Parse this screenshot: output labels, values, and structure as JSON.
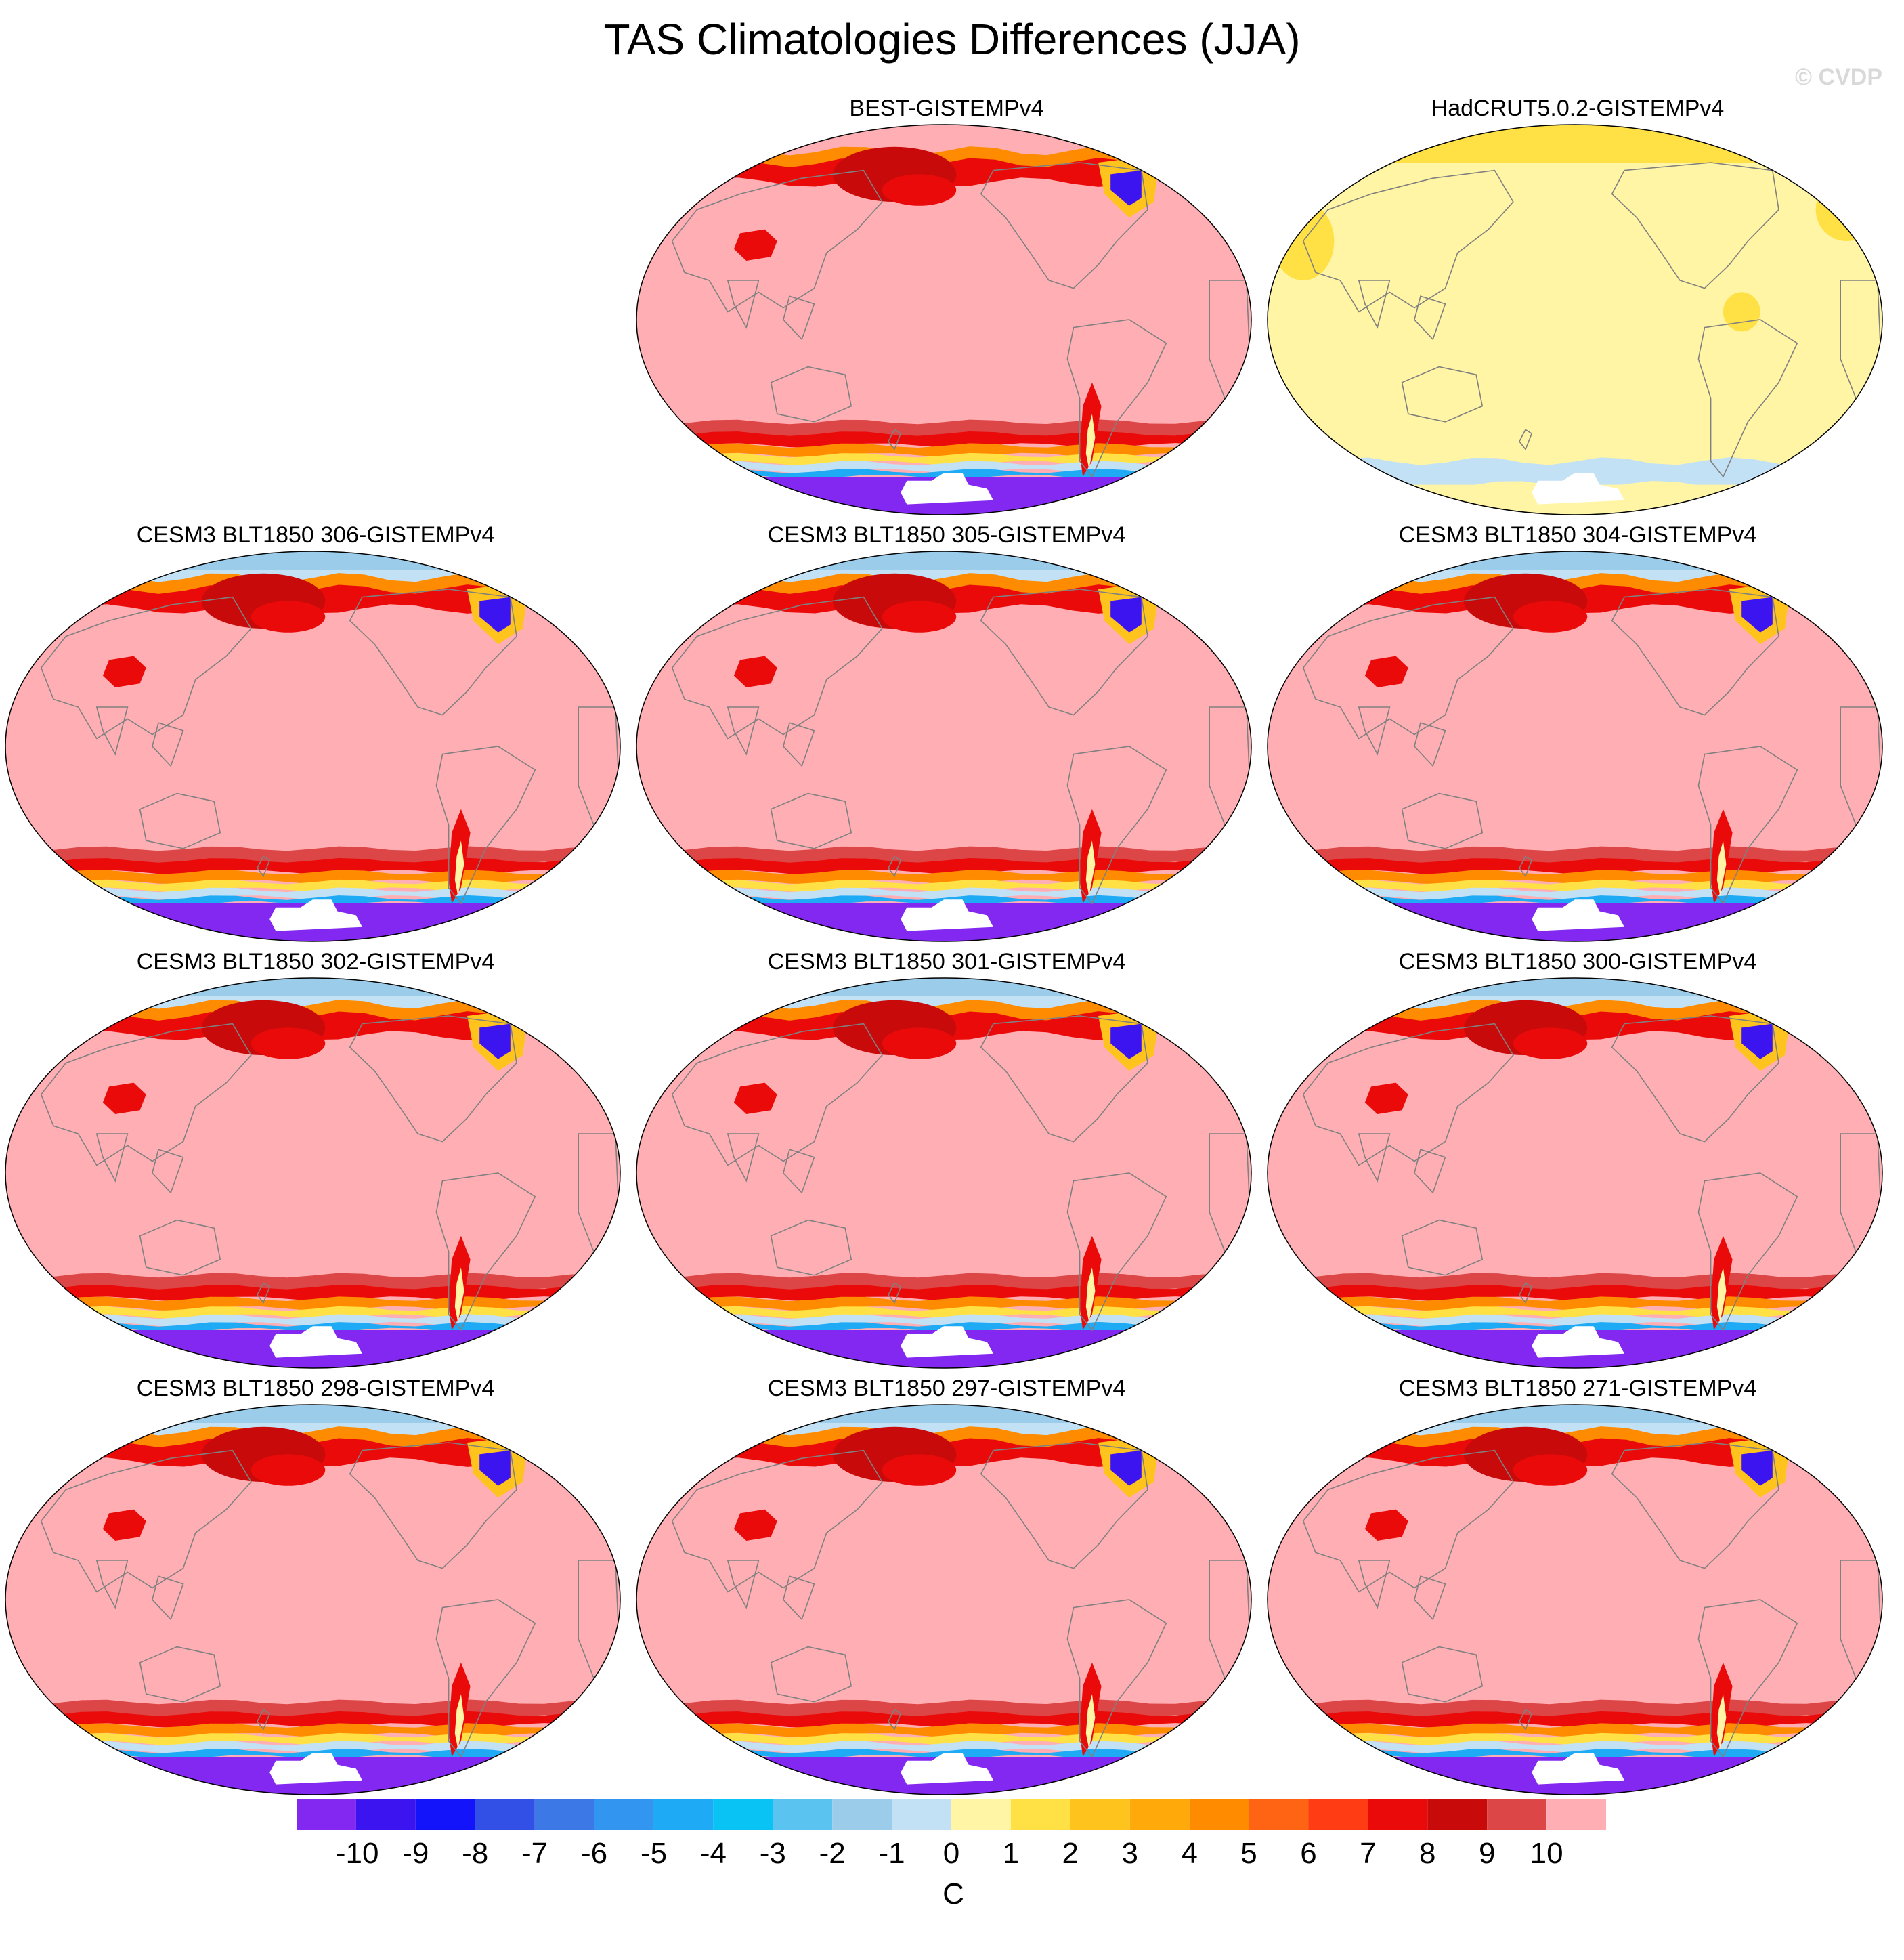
{
  "title": "TAS Climatologies Differences (JJA)",
  "watermark": "© CVDP",
  "panels": [
    {
      "label": "BEST-GISTEMPv4",
      "style": "best"
    },
    {
      "label": "HadCRUT5.0.2-GISTEMPv4",
      "style": "hadcrut"
    },
    {
      "label": "CESM3 BLT1850 306-GISTEMPv4",
      "style": "model"
    },
    {
      "label": "CESM3 BLT1850 305-GISTEMPv4",
      "style": "model"
    },
    {
      "label": "CESM3 BLT1850 304-GISTEMPv4",
      "style": "model"
    },
    {
      "label": "CESM3 BLT1850 302-GISTEMPv4",
      "style": "model"
    },
    {
      "label": "CESM3 BLT1850 301-GISTEMPv4",
      "style": "model"
    },
    {
      "label": "CESM3 BLT1850 300-GISTEMPv4",
      "style": "model"
    },
    {
      "label": "CESM3 BLT1850 298-GISTEMPv4",
      "style": "model"
    },
    {
      "label": "CESM3 BLT1850 297-GISTEMPv4",
      "style": "model"
    },
    {
      "label": "CESM3 BLT1850 271-GISTEMPv4",
      "style": "model"
    }
  ],
  "colorbar": {
    "unit": "C",
    "tick_labels": [
      "-10",
      "-9",
      "-8",
      "-7",
      "-6",
      "-5",
      "-4",
      "-3",
      "-2",
      "-1",
      "0",
      "1",
      "2",
      "3",
      "4",
      "5",
      "6",
      "7",
      "8",
      "9",
      "10"
    ],
    "colors": [
      "#8228f0",
      "#3c14f0",
      "#1414fa",
      "#3250e6",
      "#3c78e6",
      "#3296f0",
      "#1eaaf5",
      "#0ac3f5",
      "#5ac3f0",
      "#9bcdeb",
      "#c3e1f5",
      "#fff5a5",
      "#ffe146",
      "#ffc31e",
      "#ffaa0a",
      "#ff8c00",
      "#ff6414",
      "#ff3c14",
      "#ea0a0a",
      "#c80a0a",
      "#dc4646",
      "#ffafb4"
    ]
  },
  "colors": {
    "map_background": "#ffafb4",
    "hadcrut_background": "#fff5a5",
    "antarctic": "#8228f0",
    "missing": "#ffffff",
    "coastline": "#808080"
  }
}
